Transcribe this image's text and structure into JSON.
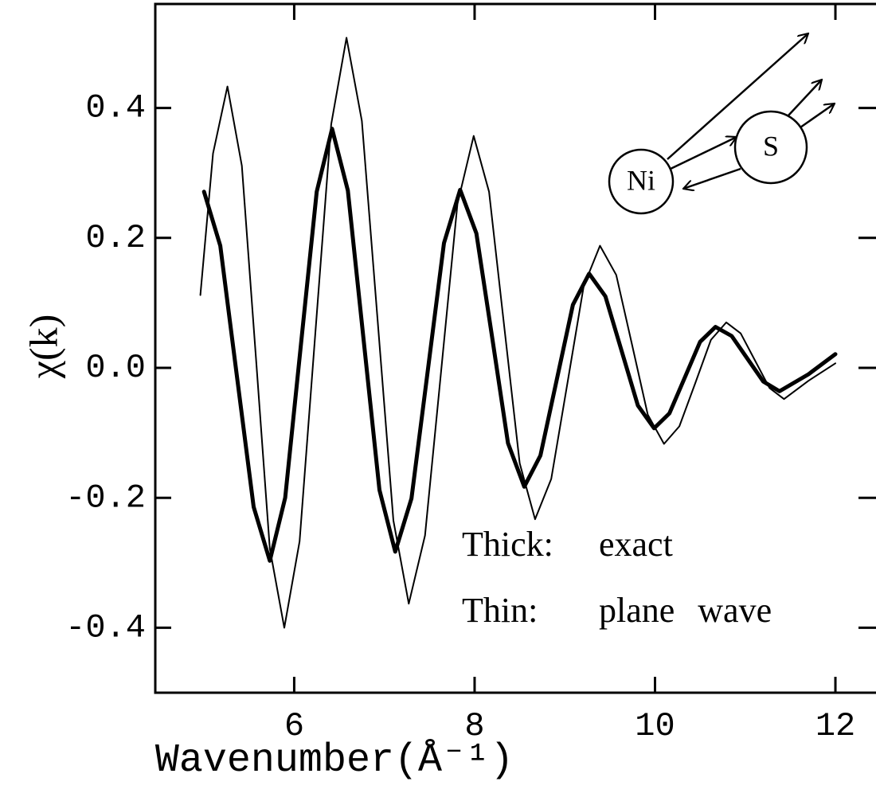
{
  "chart_data": {
    "type": "line",
    "x_label": "Wavenumber(Å⁻¹)",
    "y_label": "χ(k)",
    "xlim": [
      4.46,
      12.45
    ],
    "xticks": [
      6,
      8,
      10,
      12
    ],
    "ylim": [
      -0.5,
      0.56
    ],
    "yticks": [
      0.4,
      0.2,
      {
        "value": 0,
        "label": "0.0"
      },
      -0.2,
      -0.4
    ],
    "series": [
      {
        "name": "exact",
        "color": "#000000",
        "width": 5,
        "x": [
          5.0,
          5.18,
          5.365,
          5.55,
          5.73,
          5.9,
          6.075,
          6.25,
          6.42,
          6.595,
          6.77,
          6.945,
          7.12,
          7.3,
          7.48,
          7.66,
          7.84,
          8.02,
          8.195,
          8.37,
          8.55,
          8.73,
          8.91,
          9.09,
          9.27,
          9.45,
          9.63,
          9.81,
          9.99,
          10.16,
          10.33,
          10.5,
          10.67,
          10.85,
          11.025,
          11.2,
          11.38,
          11.7,
          12.0
        ],
        "values": [
          0.271,
          0.188,
          -0.013,
          -0.214,
          -0.297,
          -0.2,
          0.036,
          0.271,
          0.368,
          0.273,
          0.043,
          -0.188,
          -0.283,
          -0.201,
          -0.005,
          0.192,
          0.274,
          0.207,
          0.046,
          -0.116,
          -0.183,
          -0.135,
          -0.019,
          0.097,
          0.145,
          0.11,
          0.026,
          -0.058,
          -0.093,
          -0.07,
          -0.015,
          0.04,
          0.063,
          0.049,
          0.014,
          -0.021,
          -0.036,
          -0.01,
          0.021
        ]
      },
      {
        "name": "plane wave",
        "color": "#000000",
        "width": 2,
        "x": [
          4.96,
          5.1,
          5.26,
          5.42,
          5.575,
          5.73,
          5.89,
          6.06,
          6.235,
          6.41,
          6.58,
          6.75,
          6.925,
          7.1,
          7.27,
          7.45,
          7.63,
          7.81,
          7.99,
          8.16,
          8.33,
          8.5,
          8.67,
          8.85,
          9.03,
          9.21,
          9.39,
          9.57,
          9.745,
          9.92,
          10.1,
          10.27,
          10.445,
          10.62,
          10.79,
          10.95,
          11.11,
          11.27,
          11.43,
          11.7,
          12.0
        ],
        "values": [
          0.112,
          0.33,
          0.433,
          0.311,
          0.017,
          -0.278,
          -0.4,
          -0.267,
          0.054,
          0.375,
          0.508,
          0.38,
          0.073,
          -0.235,
          -0.363,
          -0.258,
          -0.003,
          0.252,
          0.357,
          0.271,
          0.062,
          -0.147,
          -0.233,
          -0.171,
          -0.023,
          0.126,
          0.188,
          0.143,
          0.036,
          -0.072,
          -0.117,
          -0.09,
          -0.024,
          0.043,
          0.07,
          0.053,
          0.011,
          -0.031,
          -0.048,
          -0.02,
          0.007
        ]
      }
    ],
    "legend_labels": [
      "Thick:",
      "Thin:"
    ],
    "diagram_labels": [
      "Ni",
      "S"
    ]
  }
}
